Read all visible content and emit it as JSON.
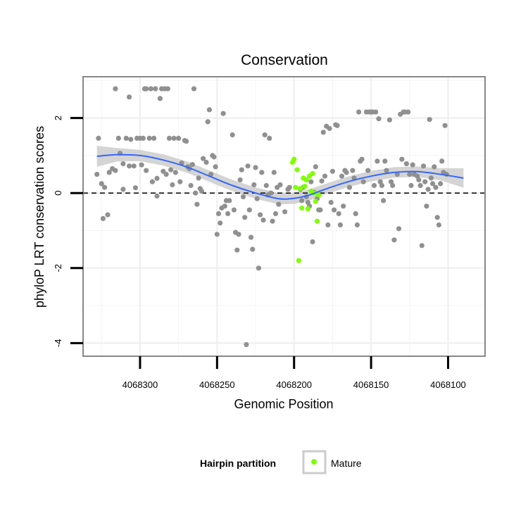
{
  "chart_data": {
    "type": "scatter",
    "title": "Conservation",
    "xlabel": "Genomic Position",
    "ylabel": "phyloP LRT conservation scores",
    "x_reversed": true,
    "xlim": [
      4068337,
      4068076
    ],
    "ylim": [
      -4.35,
      3.1
    ],
    "x_ticks": [
      4068300,
      4068250,
      4068200,
      4068150,
      4068100
    ],
    "x_tick_labels": [
      "4068300",
      "4068250",
      "4068200",
      "4068150",
      "4068100"
    ],
    "y_ticks": [
      2,
      0,
      -2,
      -4
    ],
    "y_tick_labels": [
      "2",
      "0",
      "-2",
      "-4"
    ],
    "grid": true,
    "reference_line": {
      "y": 0,
      "style": "dashed"
    },
    "legend": {
      "title": "Hairpin partition",
      "placement": "bottom",
      "entries": [
        {
          "label": "Mature",
          "color": "#7fff00"
        }
      ]
    },
    "colors": {
      "other": "#909090",
      "mature": "#7fff00",
      "smooth": "#3366ff",
      "ribbon": "#cccccc",
      "panel_border": "#888888"
    },
    "series": [
      {
        "name": "",
        "color": "#909090",
        "points": [
          [
            4068328,
            0.5
          ],
          [
            4068327,
            1.46
          ],
          [
            4068325,
            0.25
          ],
          [
            4068324,
            -0.68
          ],
          [
            4068323,
            0.15
          ],
          [
            4068321,
            -0.58
          ],
          [
            4068320,
            0.55
          ],
          [
            4068318,
            0.65
          ],
          [
            4068316,
            2.78
          ],
          [
            4068316,
            0.6
          ],
          [
            4068314,
            1.46
          ],
          [
            4068313,
            1.06
          ],
          [
            4068311,
            0.78
          ],
          [
            4068311,
            0.1
          ],
          [
            4068309,
            1.46
          ],
          [
            4068307,
            2.56
          ],
          [
            4068307,
            0.72
          ],
          [
            4068306,
            1.43
          ],
          [
            4068304,
            0.72
          ],
          [
            4068303,
            0.14
          ],
          [
            4068302,
            1.46
          ],
          [
            4068300,
            1.46
          ],
          [
            4068299,
            0.75
          ],
          [
            4068298,
            1.46
          ],
          [
            4068297,
            2.78
          ],
          [
            4068296,
            2.78
          ],
          [
            4068296,
            0.6
          ],
          [
            4068294,
            1.46
          ],
          [
            4068293,
            2.78
          ],
          [
            4068292,
            0.3
          ],
          [
            4068291,
            1.46
          ],
          [
            4068290,
            2.78
          ],
          [
            4068289,
            0.39
          ],
          [
            4068289,
            -0.08
          ],
          [
            4068287,
            2.52
          ],
          [
            4068286,
            2.78
          ],
          [
            4068285,
            0.58
          ],
          [
            4068284,
            2.78
          ],
          [
            4068283,
            0.5
          ],
          [
            4068282,
            2.78
          ],
          [
            4068281,
            1.46
          ],
          [
            4068280,
            0.62
          ],
          [
            4068279,
            0.22
          ],
          [
            4068278,
            1.46
          ],
          [
            4068277,
            0.55
          ],
          [
            4068275,
            1.46
          ],
          [
            4068274,
            0.3
          ],
          [
            4068273,
            0.8
          ],
          [
            4068271,
            1.4
          ],
          [
            4068270,
            1.38
          ],
          [
            4068269,
            0.7
          ],
          [
            4068268,
            0.65
          ],
          [
            4068267,
            0.2
          ],
          [
            4068266,
            0.76
          ],
          [
            4068265,
            2.78
          ],
          [
            4068264,
            0.0
          ],
          [
            4068263,
            -0.3
          ],
          [
            4068262,
            0.4
          ],
          [
            4068261,
            0.12
          ],
          [
            4068260,
            0.05
          ],
          [
            4068259,
            0.92
          ],
          [
            4068257,
            0.82
          ],
          [
            4068256,
            1.9
          ],
          [
            4068255,
            2.22
          ],
          [
            4068254,
            0.5
          ],
          [
            4068253,
            1.0
          ],
          [
            4068252,
            0.96
          ],
          [
            4068251,
            0.7
          ],
          [
            4068250,
            -1.1
          ],
          [
            4068249,
            -0.55
          ],
          [
            4068248,
            -0.8
          ],
          [
            4068247,
            -0.4
          ],
          [
            4068246,
            2.12
          ],
          [
            4068245,
            -0.35
          ],
          [
            4068244,
            -0.2
          ],
          [
            4068243,
            -0.55
          ],
          [
            4068242,
            -0.2
          ],
          [
            4068240,
            1.55
          ],
          [
            4068239,
            -0.45
          ],
          [
            4068238,
            -1.05
          ],
          [
            4068237,
            -1.52
          ],
          [
            4068236,
            -1.1
          ],
          [
            4068235,
            0.35
          ],
          [
            4068234,
            0.62
          ],
          [
            4068233,
            -0.1
          ],
          [
            4068232,
            -0.65
          ],
          [
            4068231,
            -4.04
          ],
          [
            4068230,
            0.72
          ],
          [
            4068229,
            -0.45
          ],
          [
            4068228,
            -1.18
          ],
          [
            4068227,
            -1.5
          ],
          [
            4068226,
            0.22
          ],
          [
            4068225,
            0.68
          ],
          [
            4068224,
            -0.15
          ],
          [
            4068223,
            -2.0
          ],
          [
            4068222,
            -0.58
          ],
          [
            4068221,
            0.55
          ],
          [
            4068220,
            -0.72
          ],
          [
            4068219,
            1.55
          ],
          [
            4068218,
            0.2
          ],
          [
            4068217,
            -0.05
          ],
          [
            4068216,
            1.46
          ],
          [
            4068215,
            0.0
          ],
          [
            4068214,
            -0.75
          ],
          [
            4068213,
            0.55
          ],
          [
            4068212,
            -0.55
          ],
          [
            4068211,
            0.15
          ],
          [
            4068210,
            -0.3
          ],
          [
            4068209,
            0.22
          ],
          [
            4068206,
            -0.5
          ],
          [
            4068204,
            0.1
          ],
          [
            4068203,
            0.15
          ],
          [
            4068196,
            0.1
          ],
          [
            4068195,
            -0.2
          ],
          [
            4068194,
            0.15
          ],
          [
            4068192,
            -0.1
          ],
          [
            4068191,
            -0.25
          ],
          [
            4068190,
            -0.35
          ],
          [
            4068189,
            0.3
          ],
          [
            4068188,
            -1.3
          ],
          [
            4068187,
            0.02
          ],
          [
            4068186,
            0.7
          ],
          [
            4068185,
            -0.15
          ],
          [
            4068184,
            -0.45
          ],
          [
            4068183,
            -0.45
          ],
          [
            4068182,
            0.32
          ],
          [
            4068181,
            1.62
          ],
          [
            4068180,
            0.45
          ],
          [
            4068179,
            1.78
          ],
          [
            4068178,
            -0.85
          ],
          [
            4068177,
            1.72
          ],
          [
            4068176,
            -0.25
          ],
          [
            4068175,
            0.58
          ],
          [
            4068174,
            -0.45
          ],
          [
            4068173,
            1.82
          ],
          [
            4068172,
            1.8
          ],
          [
            4068171,
            -0.55
          ],
          [
            4068170,
            -0.85
          ],
          [
            4068169,
            0.45
          ],
          [
            4068168,
            -0.35
          ],
          [
            4068167,
            0.6
          ],
          [
            4068166,
            0.55
          ],
          [
            4068164,
            0.15
          ],
          [
            4068162,
            0.6
          ],
          [
            4068161,
            0.4
          ],
          [
            4068160,
            -0.55
          ],
          [
            4068159,
            -0.85
          ],
          [
            4068158,
            2.16
          ],
          [
            4068157,
            0.85
          ],
          [
            4068156,
            0.9
          ],
          [
            4068155,
            0.3
          ],
          [
            4068153,
            2.16
          ],
          [
            4068152,
            0.6
          ],
          [
            4068151,
            2.16
          ],
          [
            4068150,
            2.16
          ],
          [
            4068149,
            2.16
          ],
          [
            4068148,
            0.2
          ],
          [
            4068147,
            2.16
          ],
          [
            4068146,
            0.85
          ],
          [
            4068145,
            1.98
          ],
          [
            4068144,
            0.3
          ],
          [
            4068143,
            0.2
          ],
          [
            4068142,
            -0.2
          ],
          [
            4068141,
            0.85
          ],
          [
            4068140,
            0.6
          ],
          [
            4068138,
            1.95
          ],
          [
            4068137,
            0.3
          ],
          [
            4068136,
            0.2
          ],
          [
            4068135,
            -1.25
          ],
          [
            4068133,
            0.5
          ],
          [
            4068132,
            -0.95
          ],
          [
            4068131,
            2.1
          ],
          [
            4068130,
            0.9
          ],
          [
            4068129,
            2.16
          ],
          [
            4068128,
            2.16
          ],
          [
            4068127,
            0.78
          ],
          [
            4068126,
            2.16
          ],
          [
            4068125,
            0.5
          ],
          [
            4068124,
            0.2
          ],
          [
            4068123,
            0.75
          ],
          [
            4068122,
            0.5
          ],
          [
            4068120,
            0.45
          ],
          [
            4068119,
            0.35
          ],
          [
            4068118,
            0.2
          ],
          [
            4068117,
            -1.4
          ],
          [
            4068116,
            0.72
          ],
          [
            4068115,
            0.3
          ],
          [
            4068114,
            -0.35
          ],
          [
            4068113,
            0.1
          ],
          [
            4068112,
            1.96
          ],
          [
            4068111,
            0.4
          ],
          [
            4068110,
            0.25
          ],
          [
            4068109,
            0.7
          ],
          [
            4068108,
            0.15
          ],
          [
            4068107,
            -0.65
          ],
          [
            4068106,
            -0.85
          ],
          [
            4068105,
            0.25
          ],
          [
            4068104,
            0.85
          ],
          [
            4068103,
            0.55
          ],
          [
            4068102,
            1.8
          ],
          [
            4068101,
            0.5
          ]
        ]
      },
      {
        "name": "Mature",
        "color": "#7fff00",
        "points": [
          [
            4068201,
            0.82
          ],
          [
            4068200,
            0.9
          ],
          [
            4068199,
            0.15
          ],
          [
            4068198,
            0.62
          ],
          [
            4068197,
            -1.8
          ],
          [
            4068196,
            0.12
          ],
          [
            4068195,
            -0.4
          ],
          [
            4068194,
            0.4
          ],
          [
            4068193,
            0.18
          ],
          [
            4068192,
            0.35
          ],
          [
            4068191,
            -0.42
          ],
          [
            4068190,
            0.45
          ],
          [
            4068189,
            0.05
          ],
          [
            4068188,
            0.52
          ],
          [
            4068187,
            0.0
          ],
          [
            4068186,
            -0.22
          ],
          [
            4068185,
            -0.75
          ],
          [
            4068184,
            -0.05
          ]
        ]
      }
    ],
    "smooth": [
      {
        "x": 4068328,
        "y": 0.98,
        "lo": 0.7,
        "hi": 1.26
      },
      {
        "x": 4068315,
        "y": 1.02,
        "lo": 0.84,
        "hi": 1.2
      },
      {
        "x": 4068300,
        "y": 1.0,
        "lo": 0.85,
        "hi": 1.15
      },
      {
        "x": 4068285,
        "y": 0.88,
        "lo": 0.73,
        "hi": 1.03
      },
      {
        "x": 4068270,
        "y": 0.7,
        "lo": 0.55,
        "hi": 0.85
      },
      {
        "x": 4068255,
        "y": 0.45,
        "lo": 0.3,
        "hi": 0.6
      },
      {
        "x": 4068240,
        "y": 0.2,
        "lo": 0.05,
        "hi": 0.35
      },
      {
        "x": 4068225,
        "y": 0.0,
        "lo": -0.15,
        "hi": 0.15
      },
      {
        "x": 4068210,
        "y": -0.15,
        "lo": -0.3,
        "hi": 0.0
      },
      {
        "x": 4068200,
        "y": -0.14,
        "lo": -0.29,
        "hi": 0.01
      },
      {
        "x": 4068190,
        "y": -0.05,
        "lo": -0.2,
        "hi": 0.1
      },
      {
        "x": 4068180,
        "y": 0.1,
        "lo": -0.04,
        "hi": 0.24
      },
      {
        "x": 4068165,
        "y": 0.3,
        "lo": 0.16,
        "hi": 0.44
      },
      {
        "x": 4068150,
        "y": 0.45,
        "lo": 0.31,
        "hi": 0.59
      },
      {
        "x": 4068135,
        "y": 0.55,
        "lo": 0.41,
        "hi": 0.69
      },
      {
        "x": 4068120,
        "y": 0.57,
        "lo": 0.43,
        "hi": 0.71
      },
      {
        "x": 4068105,
        "y": 0.5,
        "lo": 0.34,
        "hi": 0.66
      },
      {
        "x": 4068090,
        "y": 0.4,
        "lo": 0.14,
        "hi": 0.66
      }
    ]
  }
}
